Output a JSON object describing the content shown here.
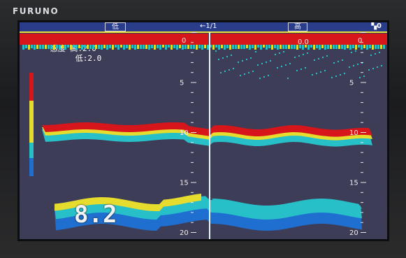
{
  "brand": "FURUNO",
  "header": {
    "left_label": "低",
    "page_indicator": "←1/1",
    "right_label": "高",
    "speaker_icon": "speaker-icon",
    "speaker_glyph": "▚0"
  },
  "gain": {
    "title": "感度",
    "high_label": "高:",
    "high_value": "2.0",
    "low_label": "低:",
    "low_value": "2.0"
  },
  "readouts": {
    "left_top_zero": "0",
    "right_mid": "0.0",
    "right_top_zero": "0"
  },
  "depth_reading": "8.2",
  "scales": {
    "left": [
      {
        "label": "5",
        "y": 5
      },
      {
        "label": "10",
        "y": 10
      },
      {
        "label": "15",
        "y": 15
      },
      {
        "label": "20",
        "y": 20
      }
    ],
    "right": [
      {
        "label": "5",
        "y": 5
      },
      {
        "label": "10",
        "y": 10
      },
      {
        "label": "15",
        "y": 15
      },
      {
        "label": "20",
        "y": 20
      }
    ]
  },
  "colors": {
    "background": "#3d3d57",
    "strong_return": "#d6161a",
    "medium_return": "#e6dc2e",
    "weak_return": "#27c0c8",
    "faint_return": "#1f6fd0"
  }
}
